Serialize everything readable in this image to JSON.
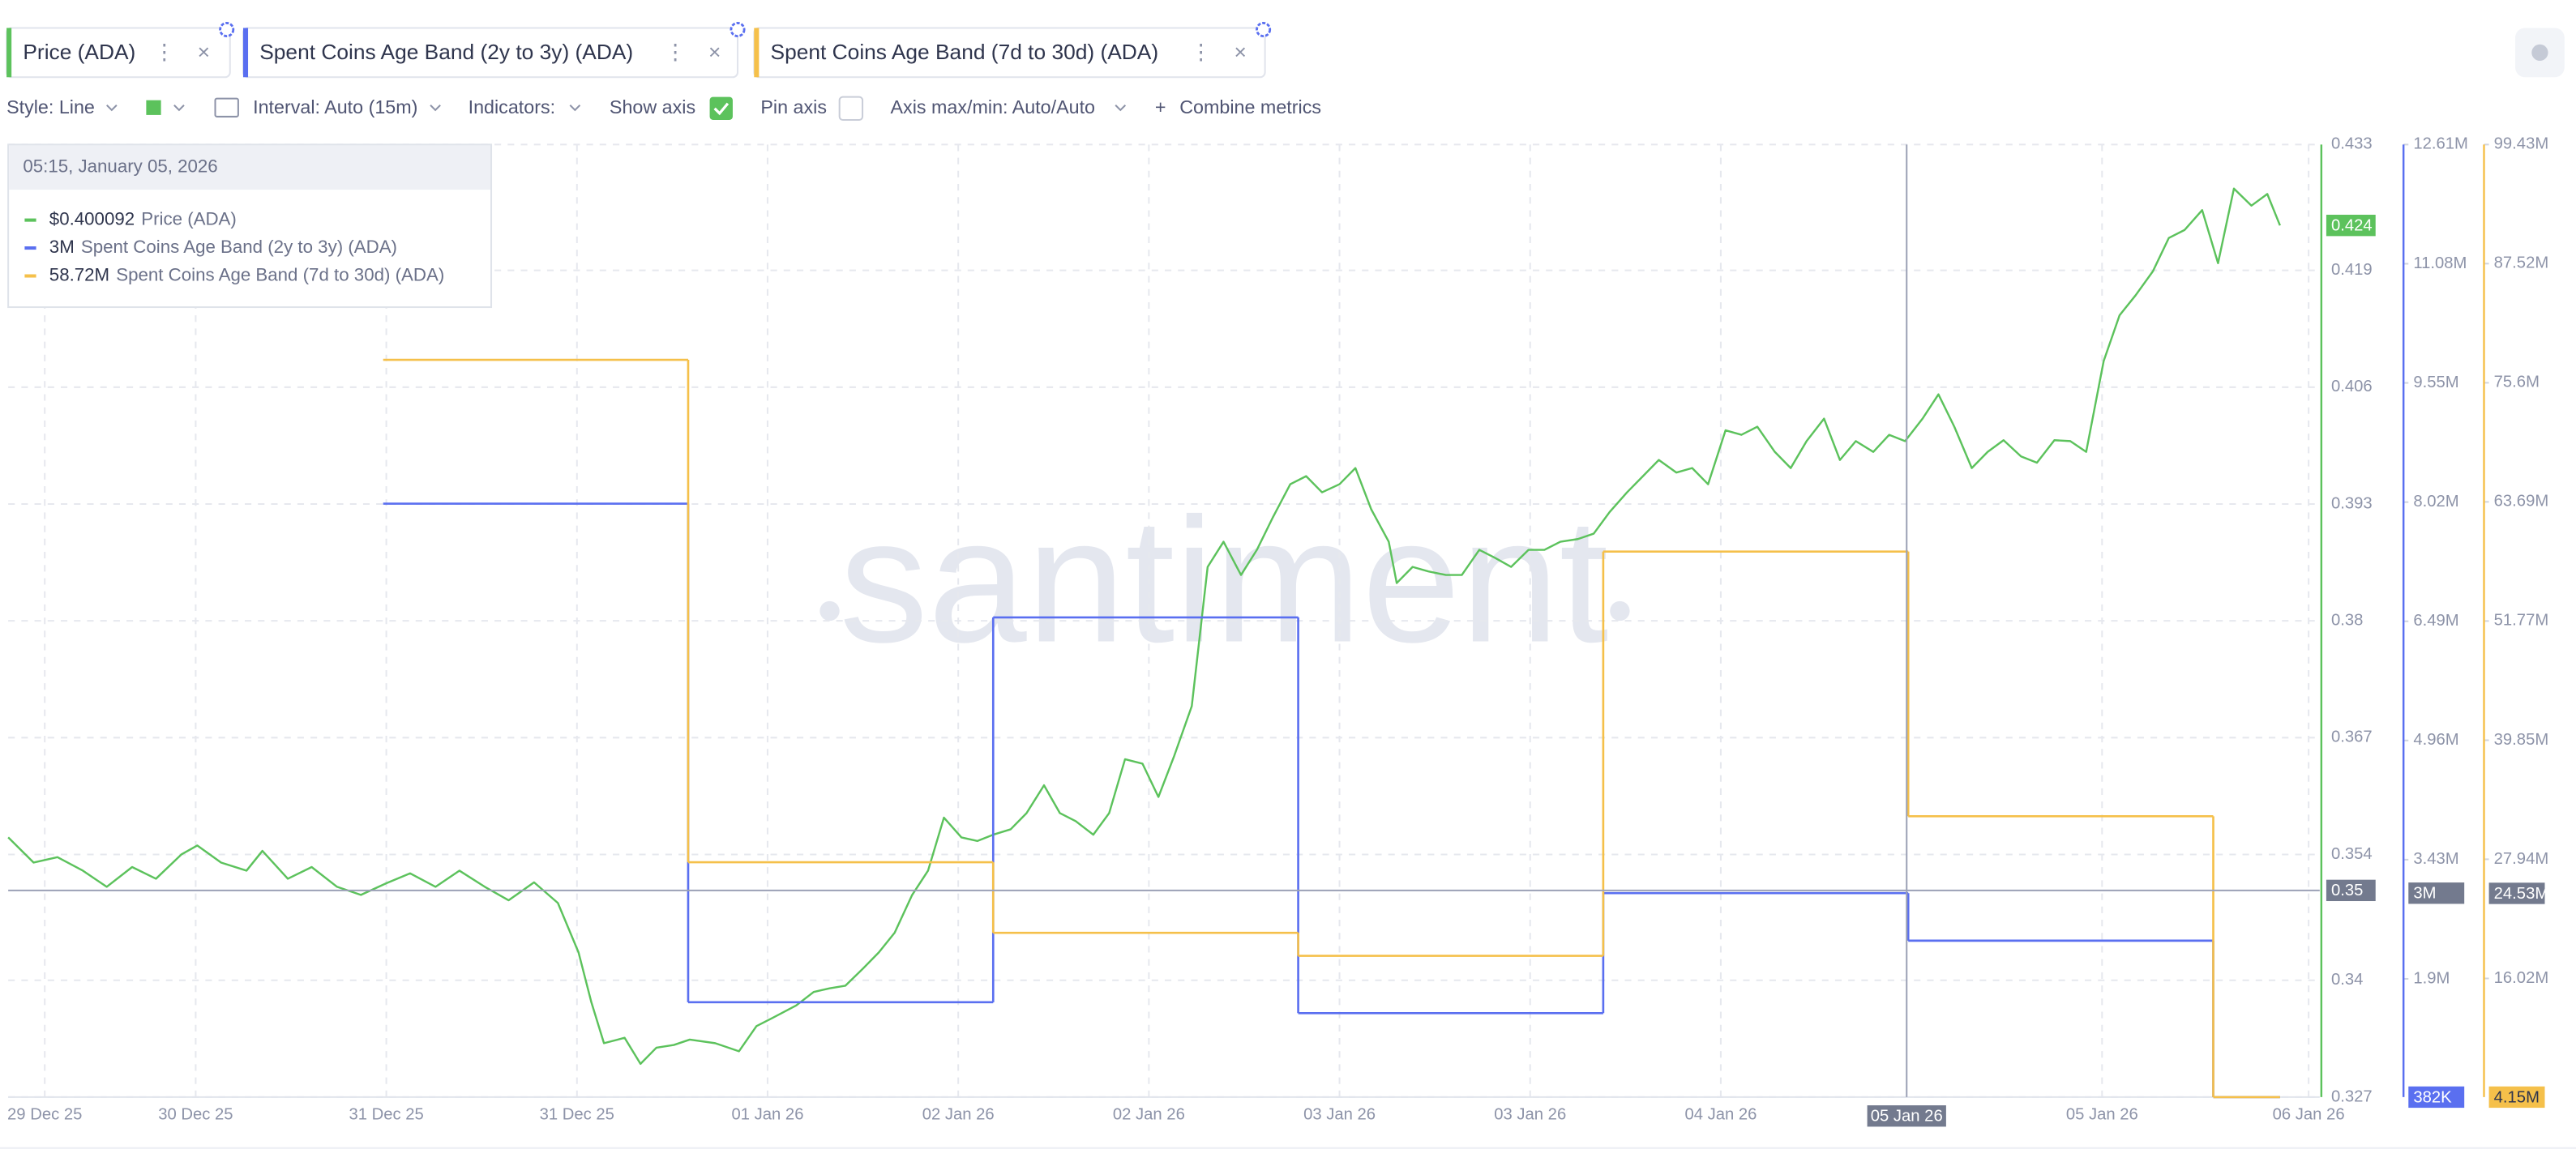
{
  "ui": {
    "toolbar": [
      "Style: Line",
      "Interval: Auto (15m)",
      "Indicators:",
      "Show axis",
      "Pin axis",
      "Axis max/min: Auto/Auto",
      "Combine metrics"
    ],
    "watermark": "santiment",
    "tooltip": {
      "time": "05:15, January 05, 2026",
      "rows": [
        "$0.400092",
        "3M",
        "58.72M"
      ]
    }
  },
  "chart_data": {
    "type": "line",
    "xlim": [
      0.2,
      145.7
    ],
    "xticks": [
      {
        "value": 2.5,
        "label": "29 Dec 25"
      },
      {
        "value": 12,
        "label": "30 Dec 25"
      },
      {
        "value": 24,
        "label": "31 Dec 25"
      },
      {
        "value": 36,
        "label": "31 Dec 25"
      },
      {
        "value": 48,
        "label": "01 Jan 26"
      },
      {
        "value": 60,
        "label": "02 Jan 26"
      },
      {
        "value": 72,
        "label": "02 Jan 26"
      },
      {
        "value": 84,
        "label": "03 Jan 26"
      },
      {
        "value": 96,
        "label": "03 Jan 26"
      },
      {
        "value": 108,
        "label": "04 Jan 26"
      },
      {
        "value": 132,
        "label": "05 Jan 26"
      },
      {
        "value": 145,
        "label": "06 Jan 26"
      }
    ],
    "ylim": [
      0.327,
      0.433
    ],
    "yticks": [
      0.327,
      0.34,
      0.354,
      0.367,
      0.38,
      0.393,
      0.406,
      0.419,
      0.433
    ],
    "y2lim": [
      382000,
      12610000
    ],
    "y2ticks": [
      {
        "value": 1900000,
        "label": "1.9M"
      },
      {
        "value": 3430000,
        "label": "3.43M"
      },
      {
        "value": 4960000,
        "label": "4.96M"
      },
      {
        "value": 6490000,
        "label": "6.49M"
      },
      {
        "value": 8020000,
        "label": "8.02M"
      },
      {
        "value": 9550000,
        "label": "9.55M"
      },
      {
        "value": 11080000,
        "label": "11.08M"
      },
      {
        "value": 12610000,
        "label": "12.61M"
      }
    ],
    "y3lim": [
      4150000,
      99430000
    ],
    "y3ticks": [
      {
        "value": 16020000,
        "label": "16.02M"
      },
      {
        "value": 27940000,
        "label": "27.94M"
      },
      {
        "value": 39850000,
        "label": "39.85M"
      },
      {
        "value": 51770000,
        "label": "51.77M"
      },
      {
        "value": 63690000,
        "label": "63.69M"
      },
      {
        "value": 75600000,
        "label": "75.6M"
      },
      {
        "value": 87520000,
        "label": "87.52M"
      },
      {
        "value": 99430000,
        "label": "99.43M"
      }
    ],
    "grid": true,
    "crosshair": {
      "x": 119.7,
      "x_label": "05 Jan 26",
      "y": 0.35,
      "y2": {
        "value": 3000000,
        "label": "3M"
      },
      "y3": {
        "value": 24530000,
        "label": "24.53M"
      }
    },
    "series": [
      {
        "name": "Price (ADA)",
        "color": "#5cc25c",
        "axis": "y",
        "step": false,
        "x": [
          0.2,
          1.8,
          3.3,
          4.9,
          6.4,
          8.0,
          9.5,
          11.1,
          12.1,
          13.6,
          15.2,
          16.2,
          17.8,
          19.3,
          20.9,
          22.4,
          24.0,
          25.5,
          27.1,
          28.6,
          30.2,
          31.7,
          33.3,
          34.8,
          36.1,
          36.9,
          37.7,
          39.0,
          40.0,
          41.0,
          42.1,
          43.1,
          44.7,
          46.2,
          47.3,
          48.3,
          49.8,
          50.9,
          51.9,
          52.9,
          54.0,
          55.0,
          56.0,
          57.1,
          58.1,
          59.1,
          60.2,
          61.2,
          62.2,
          63.3,
          64.3,
          65.4,
          66.4,
          67.4,
          68.5,
          69.5,
          70.5,
          71.6,
          72.6,
          73.6,
          74.7,
          75.7,
          76.7,
          77.8,
          78.8,
          79.8,
          80.9,
          81.9,
          82.9,
          84.0,
          85.0,
          86.0,
          87.1,
          87.6,
          88.6,
          89.6,
          90.7,
          91.7,
          92.8,
          93.8,
          94.8,
          95.9,
          96.9,
          97.9,
          99.0,
          100.0,
          101.0,
          102.1,
          103.1,
          104.1,
          105.2,
          106.2,
          107.2,
          108.3,
          109.3,
          110.3,
          111.4,
          112.4,
          113.4,
          114.5,
          115.5,
          116.5,
          117.6,
          118.6,
          119.6,
          120.7,
          121.7,
          122.7,
          123.8,
          124.8,
          125.8,
          126.9,
          127.9,
          129.0,
          130.0,
          131.0,
          132.1,
          133.1,
          134.1,
          135.2,
          136.2,
          137.2,
          138.3,
          139.3,
          140.3,
          141.4,
          142.4,
          143.2
        ],
        "values": [
          0.3559,
          0.3531,
          0.3537,
          0.3522,
          0.3504,
          0.3526,
          0.3513,
          0.354,
          0.355,
          0.3531,
          0.3522,
          0.3544,
          0.3513,
          0.3526,
          0.3504,
          0.3495,
          0.3508,
          0.3519,
          0.3504,
          0.3522,
          0.3504,
          0.3489,
          0.3509,
          0.3486,
          0.3431,
          0.3376,
          0.333,
          0.3336,
          0.3307,
          0.3325,
          0.3328,
          0.3334,
          0.333,
          0.3321,
          0.3349,
          0.3358,
          0.3372,
          0.3387,
          0.3391,
          0.3394,
          0.3413,
          0.3431,
          0.3453,
          0.3495,
          0.3522,
          0.3581,
          0.3559,
          0.3555,
          0.3562,
          0.3568,
          0.3586,
          0.3617,
          0.3586,
          0.3577,
          0.3562,
          0.3586,
          0.3646,
          0.3641,
          0.3604,
          0.365,
          0.3705,
          0.386,
          0.3888,
          0.3851,
          0.3879,
          0.3915,
          0.3952,
          0.3961,
          0.3943,
          0.3952,
          0.397,
          0.3924,
          0.3888,
          0.3842,
          0.386,
          0.3855,
          0.3851,
          0.3851,
          0.3879,
          0.387,
          0.386,
          0.3879,
          0.3879,
          0.3888,
          0.3891,
          0.3897,
          0.3921,
          0.3943,
          0.3961,
          0.3979,
          0.3965,
          0.397,
          0.3952,
          0.4012,
          0.4007,
          0.4016,
          0.3988,
          0.397,
          0.4,
          0.4025,
          0.3979,
          0.4,
          0.3988,
          0.4007,
          0.4,
          0.4025,
          0.4052,
          0.4016,
          0.397,
          0.3988,
          0.4001,
          0.3983,
          0.3976,
          0.4001,
          0.4,
          0.3988,
          0.4089,
          0.414,
          0.4162,
          0.4189,
          0.4226,
          0.4235,
          0.4257,
          0.4198,
          0.4281,
          0.4262,
          0.4275,
          0.424
        ]
      },
      {
        "name": "Spent Coins Age Band (2y to 3y) (ADA)",
        "color": "#5a6ff0",
        "axis": "y2",
        "step": true,
        "last_label": "382K",
        "x": [
          23.8,
          43.0,
          62.2,
          81.4,
          100.6,
          119.8,
          139.0,
          143.2
        ],
        "values": [
          8000000,
          1600000,
          6540000,
          1460000,
          3000000,
          2390000,
          382000,
          382000
        ]
      },
      {
        "name": "Spent Coins Age Band (7d to 30d) (ADA)",
        "color": "#f5c04a",
        "axis": "y3",
        "step": true,
        "last_label": "4.15M",
        "x": [
          23.8,
          43.0,
          62.2,
          81.4,
          100.6,
          119.8,
          139.0,
          143.2
        ],
        "values": [
          77900000,
          27640000,
          20580000,
          18280000,
          58720000,
          32240000,
          4150000,
          4150000
        ]
      }
    ]
  }
}
